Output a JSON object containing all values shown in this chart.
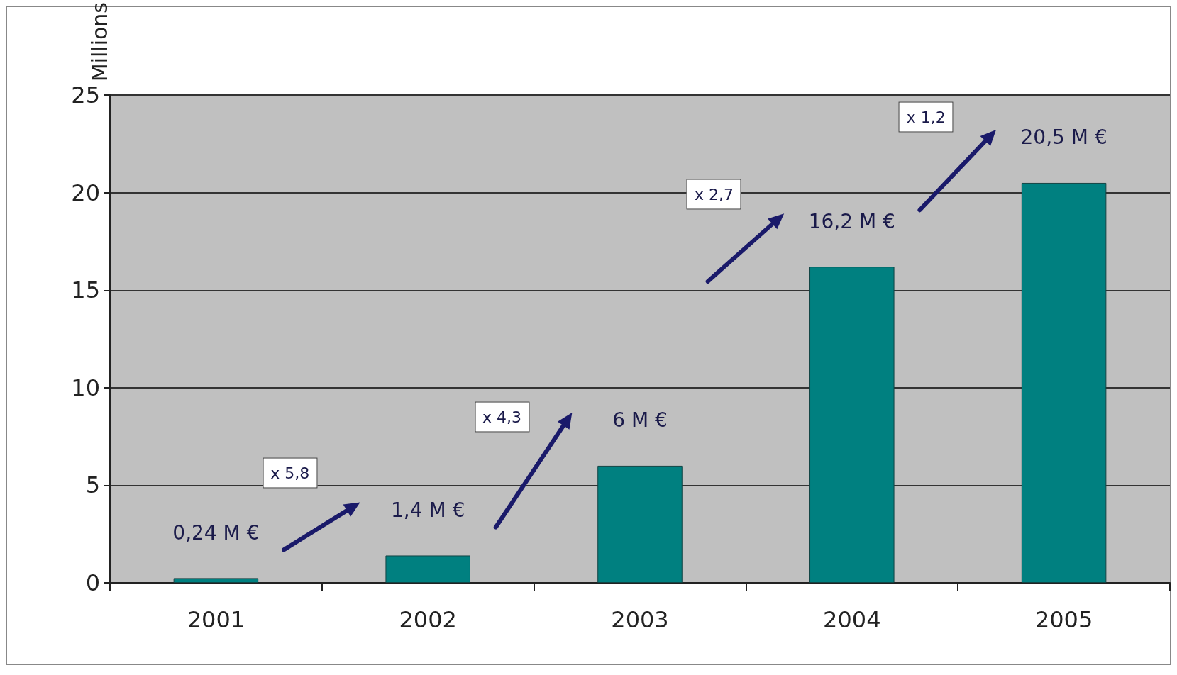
{
  "chart_data": {
    "type": "bar",
    "ylabel": "Millions",
    "categories": [
      "2001",
      "2002",
      "2003",
      "2004",
      "2005"
    ],
    "values": [
      0.24,
      1.4,
      6,
      16.2,
      20.5
    ],
    "value_labels": [
      "0,24 M €",
      "1,4 M €",
      "6 M €",
      "16,2 M €",
      "20,5 M €"
    ],
    "color": "#008080",
    "ylim": [
      0,
      25
    ],
    "yticks": [
      0,
      5,
      10,
      15,
      20,
      25
    ],
    "grid": "y",
    "annotations": [
      "x 5,8",
      "x 4,3",
      "x 2,7",
      "x 1,2"
    ]
  }
}
